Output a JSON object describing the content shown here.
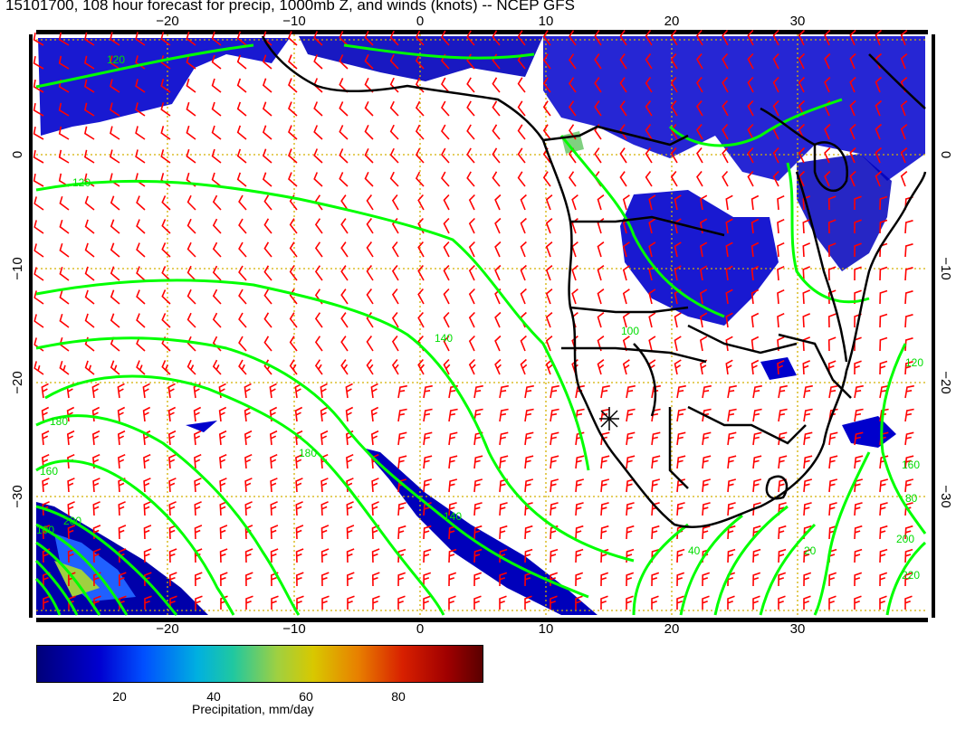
{
  "title": "15101700, 108 hour forecast for precip, 1000mb Z, and winds (knots) -- NCEP GFS",
  "axes": {
    "lon_ticks_top": [
      "−20",
      "−10",
      "0",
      "10",
      "20",
      "30"
    ],
    "lon_ticks_bottom": [
      "−20",
      "−10",
      "0",
      "10",
      "20",
      "30"
    ],
    "lat_ticks_left": [
      "0",
      "−10",
      "−20",
      "−30"
    ],
    "lat_ticks_right": [
      "0",
      "−10",
      "−20",
      "−30"
    ],
    "lon_range": [
      -30,
      40
    ],
    "lat_range": [
      -40,
      10
    ]
  },
  "contour_labels": [
    "120",
    "100",
    "140",
    "120",
    "160",
    "180",
    "180",
    "200",
    "140",
    "120",
    "80",
    "160",
    "200",
    "220",
    "40",
    "20",
    "100"
  ],
  "colorbar": {
    "ticks": [
      "20",
      "40",
      "60",
      "80"
    ],
    "label": "Precipitation, mm/day",
    "range": [
      0,
      100
    ]
  },
  "colors": {
    "contour": "#00ff00",
    "wind_barb": "#ff0000",
    "coastline": "#000000",
    "gridline": "#d4b000",
    "precip_low": "#00008b",
    "precip_mid": "#0000ff"
  }
}
